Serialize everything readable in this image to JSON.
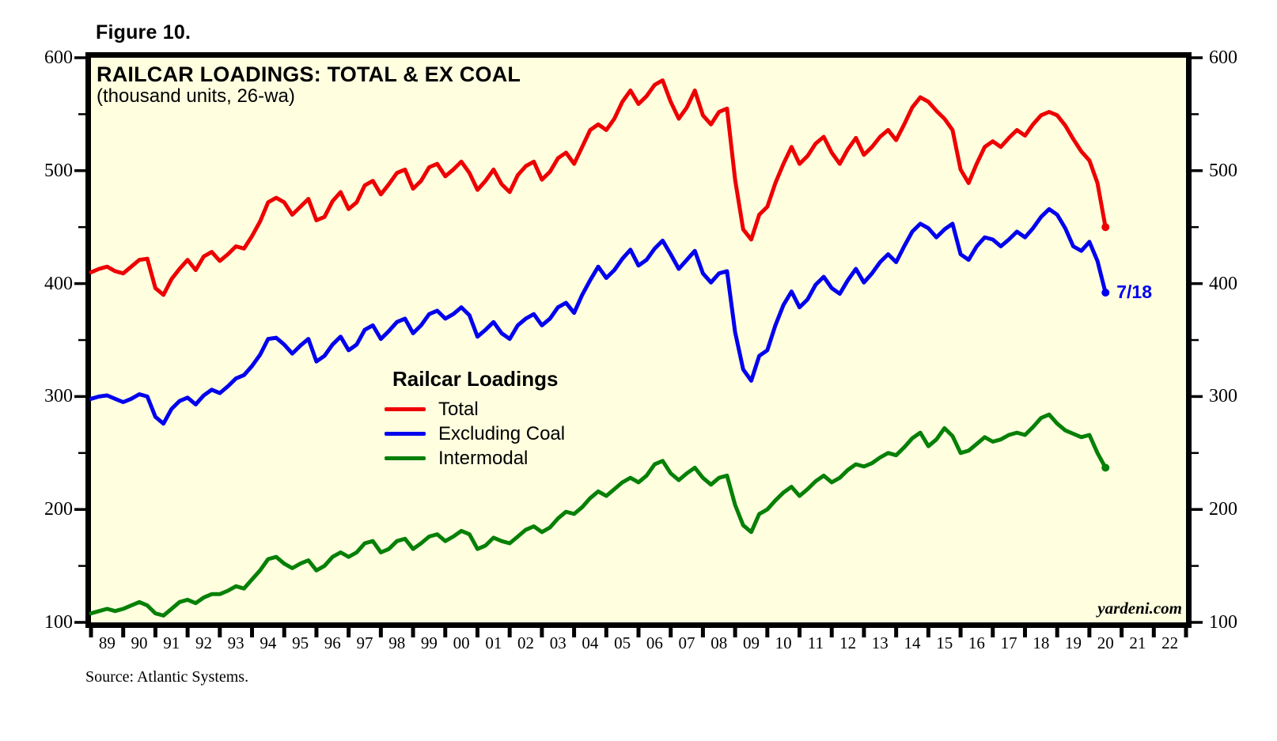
{
  "figure_label": "Figure 10.",
  "title": "RAILCAR LOADINGS: TOTAL & EX COAL",
  "subtitle": "(thousand units, 26-wa)",
  "watermark": "yardeni.com",
  "source": "Source: Atlantic Systems.",
  "end_label": {
    "text": "7/18",
    "color": "#0000EE"
  },
  "legend": {
    "title": "Railcar Loadings",
    "items": [
      {
        "label": "Total",
        "color": "#EE0000"
      },
      {
        "label": "Excluding Coal",
        "color": "#0000EE"
      },
      {
        "label": "Intermodal",
        "color": "#068006"
      }
    ]
  },
  "colors": {
    "page_background": "#FFFFFF",
    "plot_background": "#FFFFE0",
    "frame": "#000000",
    "text": "#000000"
  },
  "chart_data": {
    "type": "line",
    "title": "RAILCAR LOADINGS: TOTAL & EX COAL",
    "subtitle": "(thousand units, 26-wa)",
    "legend_position": "inside-center-left",
    "grid": false,
    "x_axis": {
      "range": [
        1989,
        2023
      ],
      "tick_step_years": 1,
      "tick_labels": [
        "89",
        "90",
        "91",
        "92",
        "93",
        "94",
        "95",
        "96",
        "97",
        "98",
        "99",
        "00",
        "01",
        "02",
        "03",
        "04",
        "05",
        "06",
        "07",
        "08",
        "09",
        "10",
        "11",
        "12",
        "13",
        "14",
        "15",
        "16",
        "17",
        "18",
        "19",
        "20",
        "21",
        "22"
      ]
    },
    "y_axis": {
      "range": [
        100,
        600
      ],
      "major_ticks": [
        100,
        200,
        300,
        400,
        500,
        600
      ],
      "minor_ticks": [
        150,
        250,
        350,
        450,
        550
      ],
      "sides": "both"
    },
    "annotation": {
      "text": "7/18",
      "series": "Excluding Coal",
      "x": 2020.5,
      "y": 392
    },
    "x_start": 1989.0,
    "x_step": 0.25,
    "series": [
      {
        "name": "Total",
        "color": "#EE0000",
        "values": [
          410,
          413,
          415,
          411,
          409,
          415,
          421,
          422,
          396,
          390,
          404,
          413,
          421,
          412,
          424,
          428,
          420,
          426,
          433,
          431,
          442,
          455,
          472,
          476,
          472,
          461,
          468,
          475,
          456,
          459,
          473,
          481,
          466,
          472,
          487,
          491,
          479,
          488,
          498,
          501,
          484,
          491,
          503,
          506,
          495,
          501,
          508,
          498,
          483,
          491,
          501,
          488,
          481,
          496,
          504,
          508,
          492,
          499,
          511,
          516,
          506,
          521,
          536,
          541,
          536,
          546,
          561,
          571,
          559,
          566,
          576,
          580,
          561,
          546,
          556,
          571,
          549,
          541,
          552,
          555,
          492,
          448,
          439,
          461,
          468,
          489,
          506,
          521,
          506,
          513,
          524,
          530,
          516,
          506,
          519,
          529,
          514,
          521,
          530,
          536,
          527,
          541,
          556,
          565,
          561,
          553,
          546,
          536,
          501,
          489,
          506,
          521,
          526,
          521,
          529,
          536,
          531,
          541,
          549,
          552,
          549,
          540,
          528,
          517,
          509,
          489,
          450
        ]
      },
      {
        "name": "Excluding Coal",
        "color": "#0000EE",
        "values": [
          298,
          300,
          301,
          298,
          295,
          298,
          302,
          300,
          282,
          276,
          289,
          296,
          299,
          293,
          301,
          306,
          303,
          309,
          316,
          319,
          327,
          337,
          351,
          352,
          346,
          338,
          345,
          351,
          331,
          336,
          346,
          353,
          341,
          346,
          359,
          363,
          351,
          358,
          366,
          369,
          356,
          363,
          373,
          376,
          369,
          373,
          379,
          372,
          353,
          359,
          366,
          356,
          351,
          363,
          369,
          373,
          363,
          369,
          379,
          383,
          374,
          390,
          403,
          415,
          405,
          412,
          422,
          430,
          416,
          421,
          431,
          438,
          426,
          413,
          421,
          429,
          409,
          401,
          409,
          411,
          357,
          324,
          314,
          336,
          341,
          363,
          381,
          393,
          379,
          386,
          399,
          406,
          396,
          391,
          403,
          413,
          401,
          409,
          419,
          426,
          419,
          433,
          446,
          453,
          449,
          441,
          448,
          453,
          426,
          421,
          433,
          441,
          439,
          433,
          439,
          446,
          441,
          449,
          459,
          466,
          461,
          449,
          433,
          429,
          437,
          420,
          392
        ]
      },
      {
        "name": "Intermodal",
        "color": "#068006",
        "values": [
          108,
          110,
          112,
          110,
          112,
          115,
          118,
          115,
          108,
          106,
          112,
          118,
          120,
          117,
          122,
          125,
          125,
          128,
          132,
          130,
          138,
          146,
          156,
          158,
          152,
          148,
          152,
          155,
          146,
          150,
          158,
          162,
          158,
          162,
          170,
          172,
          162,
          165,
          172,
          174,
          165,
          170,
          176,
          178,
          172,
          176,
          181,
          178,
          165,
          168,
          175,
          172,
          170,
          176,
          182,
          185,
          180,
          184,
          192,
          198,
          196,
          202,
          210,
          216,
          212,
          218,
          224,
          228,
          224,
          230,
          240,
          243,
          232,
          226,
          232,
          237,
          228,
          222,
          228,
          230,
          204,
          186,
          180,
          196,
          200,
          208,
          215,
          220,
          212,
          218,
          225,
          230,
          224,
          228,
          235,
          240,
          238,
          241,
          246,
          250,
          248,
          255,
          263,
          268,
          256,
          262,
          272,
          265,
          250,
          252,
          258,
          264,
          260,
          262,
          266,
          268,
          266,
          273,
          281,
          284,
          276,
          270,
          267,
          264,
          266,
          250,
          237
        ]
      }
    ]
  }
}
